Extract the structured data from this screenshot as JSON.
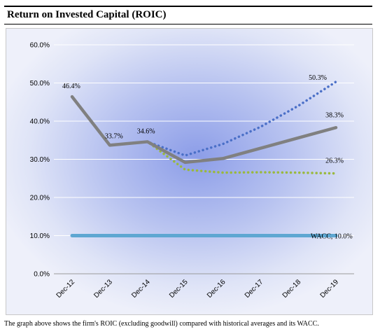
{
  "header": {
    "title": "Return on Invested Capital (ROIC)"
  },
  "caption": "The graph above shows the firm's ROIC (excluding goodwill) compared with historical averages and its WACC.",
  "colors": {
    "roic": "#808080",
    "avg_high": "#4a6fc7",
    "avg_low": "#9ab93e",
    "wacc": "#5ea7d2",
    "grid": "#ffffff"
  },
  "chart_data": {
    "type": "line",
    "categories": [
      "Dec-12",
      "Dec-13",
      "Dec-14",
      "Dec-15",
      "Dec-16",
      "Dec-17",
      "Dec-18",
      "Dec-19"
    ],
    "y_ticks": [
      "0.0%",
      "10.0%",
      "20.0%",
      "30.0%",
      "40.0%",
      "50.0%",
      "60.0%"
    ],
    "ylim": [
      0,
      60
    ],
    "grid": true,
    "series": [
      {
        "key": "roic",
        "style": "solid",
        "values": [
          46.4,
          33.7,
          34.6,
          29.2,
          30.2,
          32.9,
          35.6,
          38.3
        ]
      },
      {
        "key": "avg_high",
        "style": "dotted",
        "values": [
          46.4,
          33.7,
          34.6,
          31.0,
          34.0,
          38.5,
          44.0,
          50.3
        ]
      },
      {
        "key": "avg_low",
        "style": "dotted",
        "values": [
          46.4,
          33.7,
          34.6,
          27.3,
          26.5,
          26.6,
          26.5,
          26.3
        ]
      },
      {
        "key": "wacc",
        "style": "solid",
        "values": [
          10.0,
          10.0,
          10.0,
          10.0,
          10.0,
          10.0,
          10.0,
          10.0
        ]
      }
    ],
    "data_labels": [
      "46.4%",
      "33.7%",
      "34.6%",
      "50.3%",
      "38.3%",
      "26.3%",
      "WACC, 10.0%"
    ]
  }
}
